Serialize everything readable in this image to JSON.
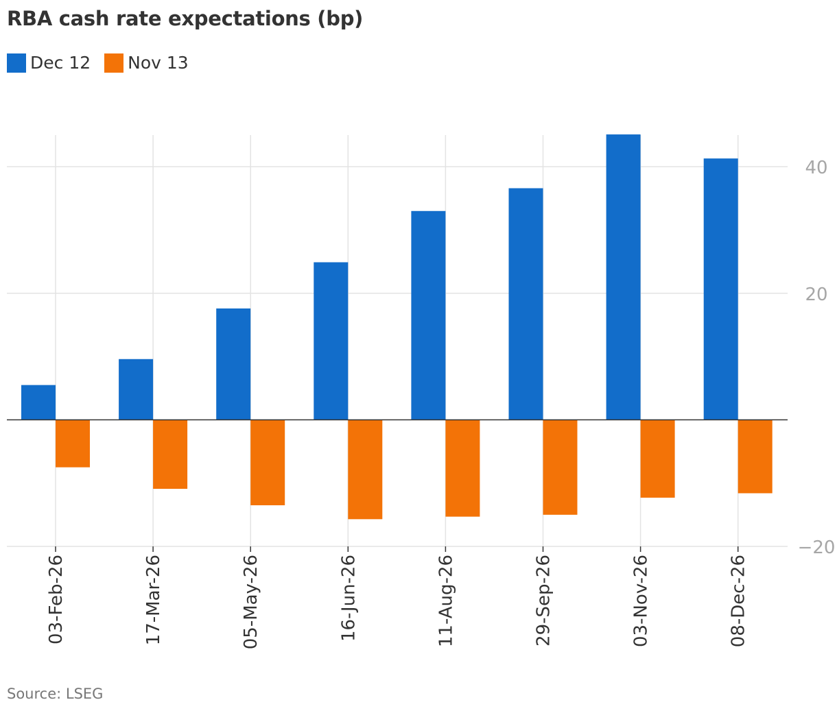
{
  "chart_data": {
    "type": "bar",
    "title": "RBA cash rate expectations (bp)",
    "source": "Source: LSEG",
    "categories": [
      "03-Feb-26",
      "17-Mar-26",
      "05-May-26",
      "16-Jun-26",
      "11-Aug-26",
      "29-Sep-26",
      "03-Nov-26",
      "08-Dec-26"
    ],
    "series": [
      {
        "name": "Dec 12",
        "color": "#126dca",
        "values": [
          5.5,
          9.6,
          17.6,
          24.9,
          33.0,
          36.6,
          45.1,
          41.3
        ]
      },
      {
        "name": "Nov 13",
        "color": "#f37307",
        "values": [
          -7.5,
          -10.9,
          -13.5,
          -15.7,
          -15.3,
          -15.0,
          -12.3,
          -11.6
        ]
      }
    ],
    "yticks": [
      40,
      20,
      -20
    ],
    "ytick_labels": [
      "40",
      "20",
      "−20"
    ],
    "ylim": [
      -20,
      45
    ],
    "xlabel": "",
    "ylabel": "",
    "grid": true,
    "legend": "top-left",
    "axis_position": "right"
  }
}
